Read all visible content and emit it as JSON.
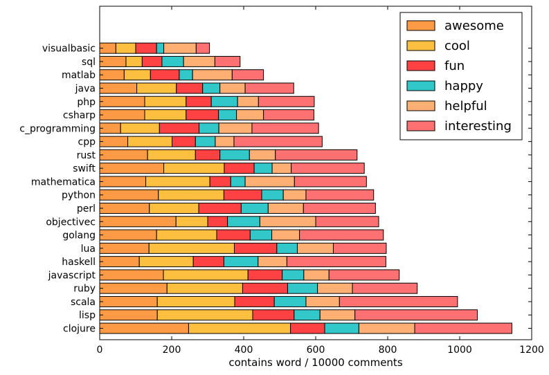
{
  "chart_data": {
    "type": "bar",
    "orientation": "horizontal",
    "stacked": true,
    "xlabel": "contains word / 10000 comments",
    "ylabel": "",
    "xlim": [
      0,
      1200
    ],
    "xticks": [
      0,
      200,
      400,
      600,
      800,
      1000,
      1200
    ],
    "grid": false,
    "legend_position": "top-right",
    "categories": [
      "clojure",
      "lisp",
      "scala",
      "ruby",
      "javascript",
      "haskell",
      "lua",
      "golang",
      "objectivec",
      "perl",
      "python",
      "mathematica",
      "swift",
      "rust",
      "cpp",
      "c_programming",
      "csharp",
      "php",
      "java",
      "matlab",
      "sql",
      "visualbasic"
    ],
    "series": [
      {
        "name": "awesome",
        "color": "#fc9a45",
        "values": [
          247,
          160,
          160,
          187,
          177,
          110,
          137,
          158,
          212,
          138,
          163,
          128,
          178,
          133,
          78,
          58,
          125,
          125,
          103,
          68,
          73,
          45
        ]
      },
      {
        "name": "cool",
        "color": "#fdbf40",
        "values": [
          283,
          265,
          215,
          210,
          235,
          150,
          237,
          167,
          88,
          137,
          182,
          178,
          168,
          133,
          123,
          108,
          115,
          115,
          110,
          73,
          45,
          55
        ]
      },
      {
        "name": "fun",
        "color": "#fe4244",
        "values": [
          95,
          115,
          110,
          125,
          95,
          85,
          118,
          93,
          55,
          118,
          105,
          58,
          83,
          68,
          65,
          110,
          90,
          70,
          73,
          80,
          55,
          58
        ]
      },
      {
        "name": "happy",
        "color": "#32c7c9",
        "values": [
          95,
          72,
          88,
          83,
          60,
          95,
          57,
          60,
          90,
          75,
          60,
          40,
          50,
          82,
          55,
          55,
          50,
          73,
          48,
          37,
          60,
          20
        ]
      },
      {
        "name": "helpful",
        "color": "#fdaf74",
        "values": [
          155,
          97,
          93,
          97,
          70,
          80,
          100,
          77,
          155,
          98,
          63,
          137,
          53,
          72,
          52,
          92,
          75,
          58,
          70,
          110,
          87,
          90
        ]
      },
      {
        "name": "interesting",
        "color": "#fe7172",
        "values": [
          270,
          340,
          328,
          180,
          195,
          275,
          147,
          233,
          175,
          200,
          188,
          200,
          203,
          227,
          245,
          185,
          140,
          155,
          135,
          87,
          70,
          37
        ]
      }
    ]
  }
}
